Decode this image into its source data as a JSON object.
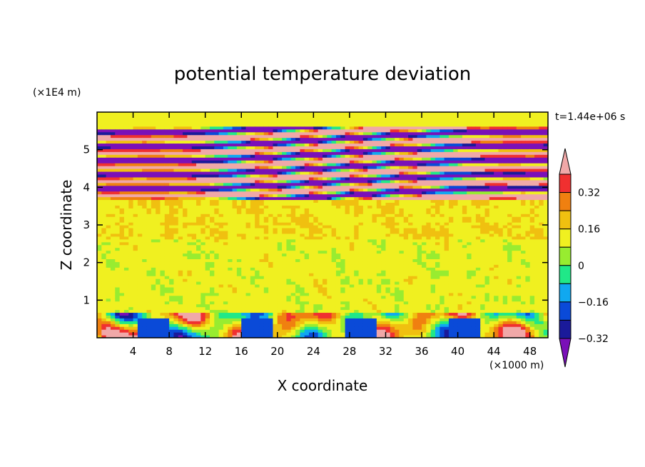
{
  "chart_data": {
    "type": "heatmap",
    "title": "potential temperature deviation",
    "xlabel": "X coordinate",
    "ylabel": "Z coordinate",
    "x_units": "(×1000 m)",
    "y_units": "(×1E4 m)",
    "time_label": "t=1.44e+06 s",
    "xlim": [
      0,
      50
    ],
    "ylim": [
      0,
      6
    ],
    "x_ticks": [
      4,
      8,
      12,
      16,
      20,
      24,
      28,
      32,
      36,
      40,
      44,
      48
    ],
    "y_ticks": [
      1,
      2,
      3,
      4,
      5
    ],
    "colorbar": {
      "levels": [
        -0.4,
        -0.32,
        -0.24,
        -0.16,
        -0.08,
        0,
        0.08,
        0.16,
        0.24,
        0.32,
        0.4
      ],
      "labels": [
        "0.32",
        "0.16",
        "0",
        "−0.16",
        "−0.32"
      ],
      "colors": [
        "#7a10b8",
        "#1a1a9a",
        "#0a4ad8",
        "#10a8f0",
        "#20e888",
        "#98ec30",
        "#f0f020",
        "#f0c010",
        "#f08010",
        "#f03030",
        "#f0a8a8"
      ],
      "extend": "both"
    },
    "regions": [
      {
        "value": 0.05,
        "z_range": [
          0.6,
          3.6
        ],
        "description": "mostly near-zero field"
      },
      {
        "value": 0.45,
        "z_range": [
          3.7,
          5.6
        ],
        "description": "alternating bands"
      },
      {
        "value": -0.45,
        "z_range": [
          3.7,
          5.6
        ],
        "description": "alternating bands"
      }
    ]
  }
}
